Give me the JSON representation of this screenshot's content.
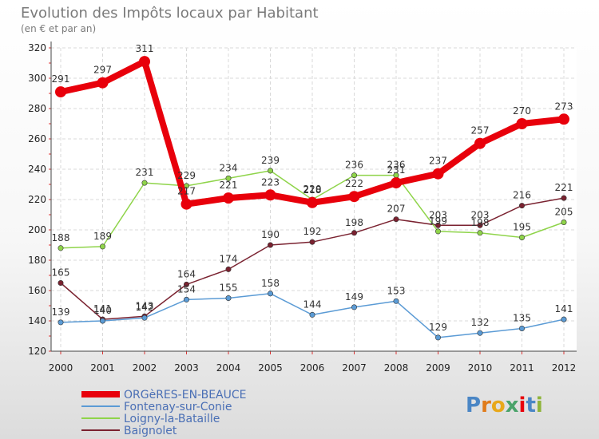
{
  "chart_data": {
    "type": "line",
    "title": "Evolution des Impôts locaux par Habitant",
    "subtitle": "(en € et par an)",
    "x": [
      "2000",
      "2001",
      "2002",
      "2003",
      "2004",
      "2005",
      "2006",
      "2007",
      "2008",
      "2009",
      "2010",
      "2011",
      "2012"
    ],
    "ylim": [
      120,
      320
    ],
    "yticks": [
      120,
      140,
      160,
      180,
      200,
      220,
      240,
      260,
      280,
      300,
      320
    ],
    "grid": true,
    "legend_position": "bottom-left",
    "series": [
      {
        "name": "ORGèRES-EN-BEAUCE",
        "color": "#e8000b",
        "values": [
          291,
          297,
          311,
          217,
          221,
          223,
          218,
          222,
          231,
          237,
          257,
          270,
          273
        ]
      },
      {
        "name": "Fontenay-sur-Conie",
        "color": "#5b9bd5",
        "values": [
          139,
          140,
          142,
          154,
          155,
          158,
          144,
          149,
          153,
          129,
          132,
          135,
          141
        ]
      },
      {
        "name": "Loigny-la-Bataille",
        "color": "#8fd44a",
        "values": [
          188,
          189,
          231,
          229,
          234,
          239,
          220,
          236,
          236,
          199,
          198,
          195,
          205
        ]
      },
      {
        "name": "Baignolet",
        "color": "#7a2230",
        "values": [
          165,
          141,
          143,
          164,
          174,
          190,
          192,
          198,
          207,
          203,
          203,
          216,
          221
        ]
      }
    ]
  },
  "legend": [
    {
      "label": "ORGèRES-EN-BEAUCE",
      "color": "#e8000b"
    },
    {
      "label": "Fontenay-sur-Conie",
      "color": "#5b9bd5"
    },
    {
      "label": "Loigny-la-Bataille",
      "color": "#8fd44a"
    },
    {
      "label": "Baignolet",
      "color": "#7a2230"
    }
  ],
  "brand": "Proxiti"
}
